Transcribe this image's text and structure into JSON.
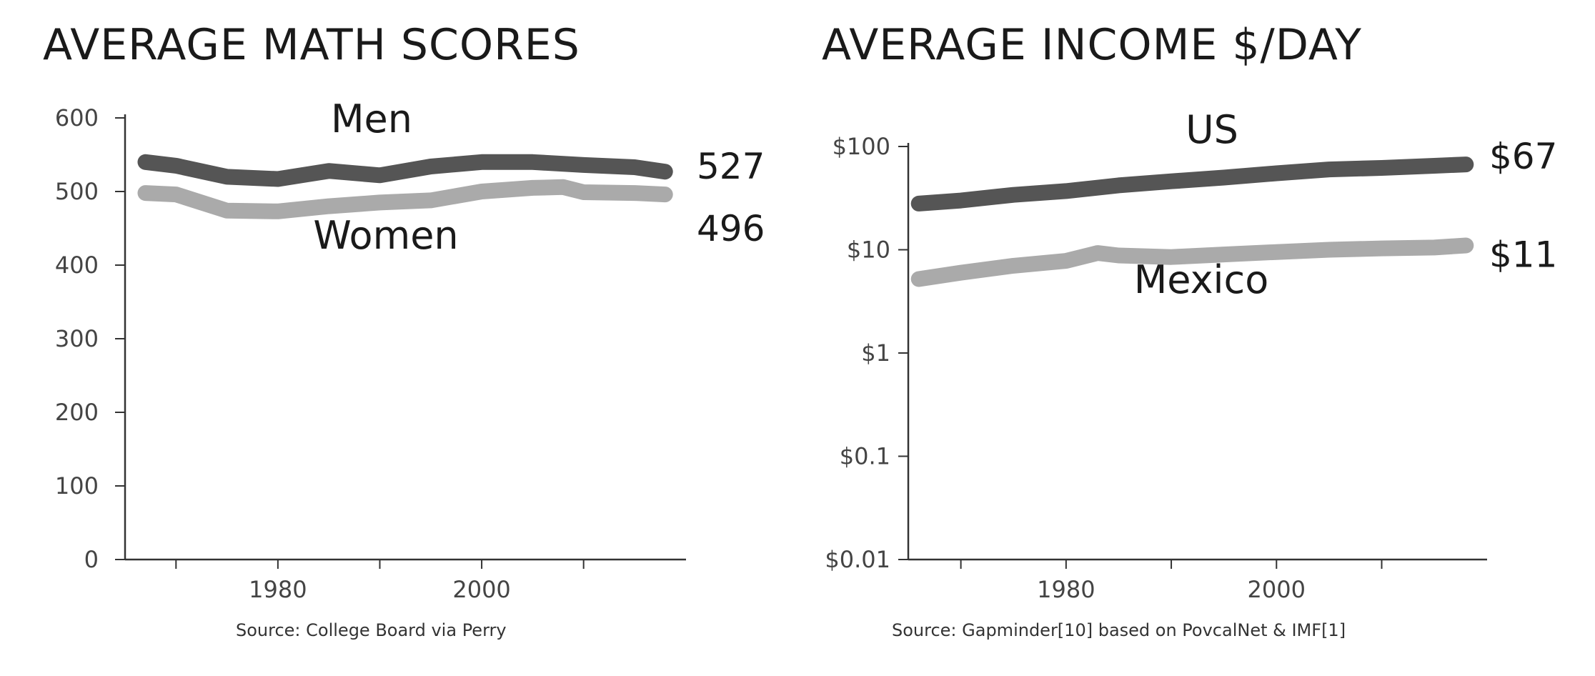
{
  "colors": {
    "dark_series": "#555555",
    "light_series": "#aaaaaa",
    "axis": "#333333",
    "text": "#1a1a1a"
  },
  "chart_data": [
    {
      "type": "line",
      "title": "AVERAGE MATH SCORES",
      "source": "Source: College Board via Perry",
      "ylim": [
        0,
        600
      ],
      "yticks": [
        0,
        100,
        200,
        300,
        400,
        500,
        600
      ],
      "ytick_labels": [
        "0",
        "100",
        "200",
        "300",
        "400",
        "500",
        "600"
      ],
      "xlim": [
        1965,
        2019
      ],
      "xticks": [
        1970,
        1980,
        1990,
        2000,
        2010
      ],
      "xtick_labels": [
        "",
        "1980",
        "",
        "2000",
        ""
      ],
      "y_scale": "linear",
      "grid": false,
      "series": [
        {
          "name": "Men",
          "color": "#555555",
          "end_label": "527",
          "x": [
            1967,
            1970,
            1975,
            1980,
            1985,
            1990,
            1995,
            2000,
            2005,
            2010,
            2015,
            2018
          ],
          "values": [
            540,
            535,
            520,
            517,
            528,
            522,
            534,
            540,
            540,
            536,
            533,
            527
          ]
        },
        {
          "name": "Women",
          "color": "#aaaaaa",
          "end_label": "496",
          "x": [
            1967,
            1970,
            1975,
            1980,
            1985,
            1990,
            1995,
            2000,
            2005,
            2008,
            2010,
            2015,
            2018
          ],
          "values": [
            498,
            496,
            474,
            473,
            480,
            485,
            488,
            500,
            505,
            506,
            499,
            498,
            496
          ]
        }
      ]
    },
    {
      "type": "line",
      "title": "AVERAGE INCOME $/DAY",
      "source": "Source: Gapminder[10] based on PovcalNet & IMF[1]",
      "y_scale": "log",
      "ylim": [
        0.01,
        100
      ],
      "yticks": [
        0.01,
        0.1,
        1,
        10,
        100
      ],
      "ytick_labels": [
        "$0.01",
        "$0.1",
        "$1",
        "$10",
        "$100"
      ],
      "xlim": [
        1965,
        2019
      ],
      "xticks": [
        1970,
        1980,
        1990,
        2000,
        2010
      ],
      "xtick_labels": [
        "",
        "1980",
        "",
        "2000",
        ""
      ],
      "grid": false,
      "series": [
        {
          "name": "US",
          "color": "#555555",
          "end_label": "$67",
          "x": [
            1966,
            1970,
            1975,
            1980,
            1985,
            1990,
            1995,
            2000,
            2005,
            2010,
            2015,
            2018
          ],
          "values": [
            28,
            30,
            34,
            37,
            42,
            46,
            50,
            55,
            60,
            62,
            65,
            67
          ]
        },
        {
          "name": "Mexico",
          "color": "#aaaaaa",
          "end_label": "$11",
          "x": [
            1966,
            1970,
            1975,
            1980,
            1983,
            1985,
            1990,
            1995,
            2000,
            2005,
            2010,
            2015,
            2018
          ],
          "values": [
            5.2,
            6,
            7,
            7.8,
            9.3,
            8.8,
            8.5,
            9,
            9.5,
            10,
            10.3,
            10.5,
            11
          ]
        }
      ]
    }
  ]
}
